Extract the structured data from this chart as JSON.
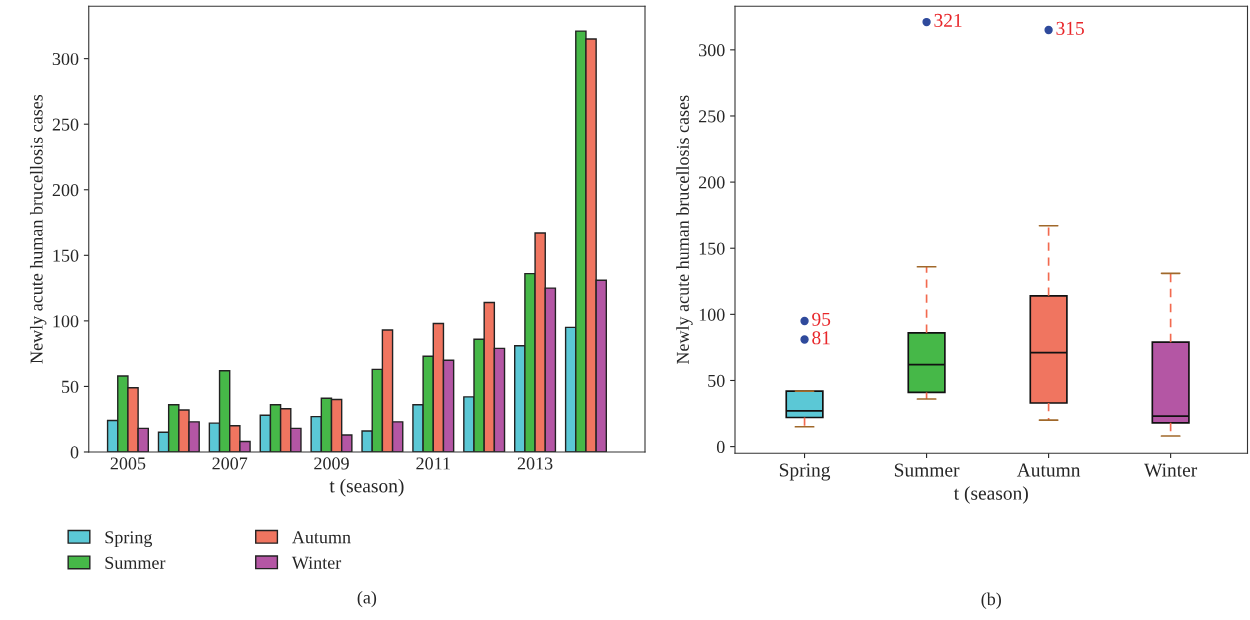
{
  "chart_data": [
    {
      "type": "bar",
      "xlabel": "t (season)",
      "ylabel": "Newly acute human brucellosis cases",
      "categories": [
        "2005",
        null,
        "2007",
        null,
        "2009",
        null,
        "2011",
        null,
        "2013",
        null
      ],
      "series": [
        {
          "name": "Spring",
          "color": "#5bc8d6",
          "values": [
            24,
            15,
            22,
            28,
            27,
            16,
            36,
            42,
            81,
            95
          ]
        },
        {
          "name": "Summer",
          "color": "#46b848",
          "values": [
            58,
            36,
            62,
            36,
            41,
            63,
            73,
            86,
            136,
            321
          ]
        },
        {
          "name": "Autumn",
          "color": "#f07560",
          "values": [
            49,
            32,
            20,
            33,
            40,
            93,
            98,
            114,
            167,
            315
          ]
        },
        {
          "name": "Winter",
          "color": "#b456a4",
          "values": [
            18,
            23,
            8,
            18,
            13,
            23,
            70,
            79,
            125,
            131
          ]
        }
      ],
      "ylim": [
        0,
        340
      ],
      "yticks": [
        0,
        50,
        100,
        150,
        200,
        250,
        300
      ],
      "grid": false,
      "legend": "bottom",
      "annotations": [
        "(a)"
      ]
    },
    {
      "type": "box",
      "xlabel": "t (season)",
      "ylabel": "Newly acute human brucellosis cases",
      "categories": [
        "Spring",
        "Summer",
        "Autumn",
        "Winter"
      ],
      "colors": [
        "#5bc8d6",
        "#46b848",
        "#f07560",
        "#b456a4"
      ],
      "boxes": [
        {
          "low": 15,
          "q1": 22,
          "median": 27,
          "q3": 42,
          "high": 42,
          "outliers": [
            95,
            81
          ]
        },
        {
          "low": 36,
          "q1": 41,
          "median": 62,
          "q3": 86,
          "high": 136,
          "outliers": [
            321
          ]
        },
        {
          "low": 20,
          "q1": 33,
          "median": 71,
          "q3": 114,
          "high": 167,
          "outliers": [
            315
          ]
        },
        {
          "low": 8,
          "q1": 18,
          "median": 23,
          "q3": 79,
          "high": 131
        }
      ],
      "ylim": [
        -5,
        333
      ],
      "yticks": [
        0,
        50,
        100,
        150,
        200,
        250,
        300
      ],
      "grid": false,
      "annotations": [
        "95",
        "81",
        "321",
        "315",
        "(b)"
      ]
    }
  ]
}
